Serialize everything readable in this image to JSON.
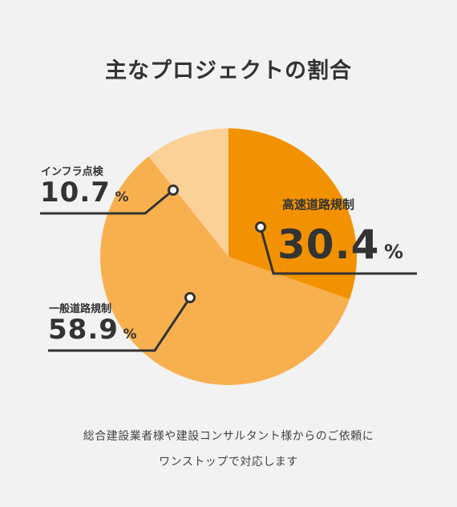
{
  "title": "主なプロジェクトの割合",
  "chart_data": {
    "type": "pie",
    "title": "主なプロジェクトの割合",
    "slices": [
      {
        "label": "高速道路規制",
        "value": 30.4,
        "color": "#f39200"
      },
      {
        "label": "一般道路規制",
        "value": 58.9,
        "color": "#f8b04f"
      },
      {
        "label": "インフラ点検",
        "value": 10.7,
        "color": "#fbd197"
      }
    ],
    "value_unit": "%",
    "start": "12 o'clock, clockwise"
  },
  "labels": {
    "highway": {
      "name": "高速道路規制",
      "value": "30.4",
      "unit": "%"
    },
    "general": {
      "name": "一般道路規制",
      "value": "58.9",
      "unit": "%"
    },
    "infra": {
      "name": "インフラ点検",
      "value": "10.7",
      "unit": "%"
    }
  },
  "footer": {
    "line1": "総合建設業者様や建設コンサルタント様からのご依頼に",
    "line2": "ワンストップで対応します"
  },
  "colors": {
    "background": "#f2f2f2",
    "text": "#333333",
    "highway": "#f39200",
    "general": "#f8b04f",
    "infra": "#fbd197"
  }
}
